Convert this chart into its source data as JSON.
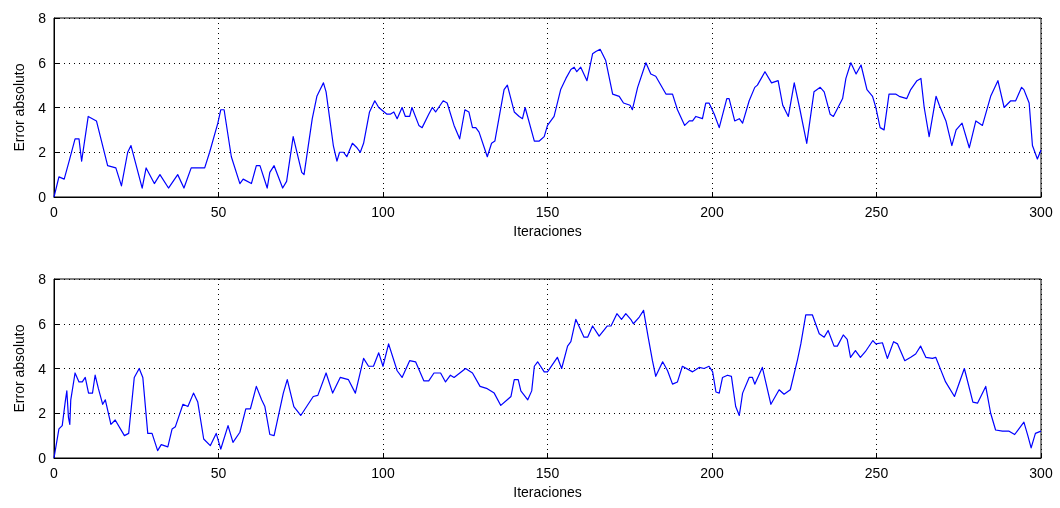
{
  "chart_data": [
    {
      "type": "line",
      "xlabel": "Iteraciones",
      "ylabel": "Error absoluto",
      "xlim": [
        0,
        300
      ],
      "xticks": [
        0,
        50,
        100,
        150,
        200,
        250,
        300
      ],
      "ylim": [
        0,
        8
      ],
      "yticks": [
        0,
        2,
        4,
        6,
        8
      ],
      "grid": true,
      "series": [
        {
          "color": "#0000ff",
          "x": [
            0,
            1.5,
            3.1,
            4.6,
            6.4,
            7.6,
            8.4,
            10.4,
            12.9,
            16.3,
            18.8,
            20.5,
            22.4,
            23.4,
            26.8,
            28.0,
            30.5,
            32.2,
            34.8,
            37.6,
            39.5,
            41.7,
            45.8,
            47.3,
            49.8,
            50.7,
            51.7,
            53.9,
            56.5,
            57.5,
            60.0,
            61.5,
            62.6,
            64.8,
            65.6,
            66.9,
            69.5,
            70.7,
            72.7,
            75.3,
            76.0,
            78.5,
            79.9,
            80.9,
            81.9,
            82.7,
            84.9,
            86.0,
            86.8,
            88.0,
            89.0,
            90.7,
            92.1,
            93.1,
            94.1,
            95.9,
            97.5,
            98.7,
            101.2,
            102.2,
            103.3,
            104.3,
            105.8,
            106.8,
            108.1,
            108.8,
            110.9,
            111.9,
            113.9,
            115.0,
            116.0,
            118.3,
            119.5,
            121.6,
            123.3,
            124.9,
            126.1,
            127.2,
            128.2,
            129.2,
            131.7,
            133.0,
            134.0,
            136.8,
            137.8,
            139.9,
            141.4,
            142.4,
            143.2,
            146.0,
            147.5,
            149.0,
            150,
            152,
            154,
            155.6,
            157.1,
            158.1,
            158.9,
            160.1,
            162,
            163.7,
            164.7,
            166,
            167.7,
            169.8,
            171.8,
            173.1,
            175.1,
            175.8,
            177.4,
            179.9,
            181.4,
            182.9,
            186,
            188,
            189.5,
            191.7,
            193.1,
            194.1,
            195.1,
            197.1,
            198.1,
            199.1,
            200.7,
            202.2,
            204.5,
            205.2,
            206.9,
            208.3,
            209.3,
            211.3,
            213,
            213.8,
            216.1,
            218.1,
            220.1,
            221.5,
            223.2,
            225,
            226.6,
            228.8,
            231,
            232.9,
            234.1,
            235.9,
            236.9,
            239.7,
            240.7,
            242.2,
            243.8,
            245.3,
            247.1,
            248.8,
            249.8,
            251.1,
            252.3,
            253.8,
            255.8,
            256.9,
            259.2,
            260.4,
            262.3,
            263.5,
            264.5,
            266,
            268.1,
            269.1,
            271.1,
            272.9,
            274.2,
            276,
            278.2,
            280.2,
            282.2,
            284.7,
            286.9,
            288.8,
            290.8,
            292.3,
            294.1,
            294.8,
            296.4,
            297.4,
            298.9,
            300
          ],
          "values": [
            0,
            0.9,
            0.8,
            1.6,
            2.6,
            2.6,
            1.6,
            3.6,
            3.4,
            1.4,
            1.3,
            0.5,
            2.0,
            2.3,
            0.4,
            1.3,
            0.6,
            1.0,
            0.4,
            1.0,
            0.4,
            1.3,
            1.3,
            2.0,
            3.3,
            3.9,
            3.9,
            1.8,
            0.6,
            0.8,
            0.6,
            1.4,
            1.4,
            0.4,
            1.1,
            1.4,
            0.4,
            0.7,
            2.7,
            1.1,
            1.0,
            3.5,
            4.5,
            4.8,
            5.1,
            4.7,
            2.3,
            1.6,
            2.0,
            2.0,
            1.8,
            2.4,
            2.2,
            2.0,
            2.4,
            3.8,
            4.3,
            4.0,
            3.7,
            3.7,
            3.8,
            3.5,
            4.0,
            3.6,
            3.6,
            4.0,
            3.2,
            3.1,
            3.7,
            4.0,
            3.8,
            4.3,
            4.2,
            3.2,
            2.6,
            3.9,
            3.8,
            3.1,
            3.1,
            2.9,
            1.8,
            2.4,
            2.5,
            4.8,
            5.0,
            3.8,
            3.6,
            3.5,
            4.0,
            2.5,
            2.5,
            2.7,
            3.2,
            3.6,
            4.8,
            5.3,
            5.7,
            5.8,
            5.6,
            5.8,
            5.2,
            6.4,
            6.5,
            6.6,
            6.1,
            4.6,
            4.5,
            4.2,
            4.1,
            3.9,
            4.9,
            6.0,
            5.5,
            5.4,
            4.6,
            4.6,
            3.9,
            3.2,
            3.4,
            3.4,
            3.6,
            3.5,
            4.2,
            4.2,
            3.7,
            3.1,
            4.4,
            4.4,
            3.4,
            3.5,
            3.3,
            4.3,
            4.9,
            5.0,
            5.6,
            5.1,
            5.2,
            4.1,
            3.6,
            5.1,
            4.0,
            2.4,
            4.7,
            4.9,
            4.7,
            3.7,
            3.6,
            4.4,
            5.3,
            6.0,
            5.5,
            5.9,
            4.8,
            4.5,
            4.0,
            3.1,
            3.0,
            4.6,
            4.6,
            4.5,
            4.4,
            4.8,
            5.2,
            5.3,
            4.0,
            2.7,
            4.5,
            4.1,
            3.4,
            2.3,
            3.0,
            3.3,
            2.2,
            3.4,
            3.2,
            4.5,
            5.2,
            4.0,
            4.3,
            4.3,
            4.9,
            4.8,
            4.2,
            2.3,
            1.7,
            2.1
          ]
        }
      ]
    },
    {
      "type": "line",
      "xlabel": "Iteraciones",
      "ylabel": "Error absoluto",
      "xlim": [
        0,
        300
      ],
      "xticks": [
        0,
        50,
        100,
        150,
        200,
        250,
        300
      ],
      "ylim": [
        0,
        8
      ],
      "yticks": [
        0,
        2,
        4,
        6,
        8
      ],
      "grid": true,
      "series": [
        {
          "color": "#0000ff",
          "x": [
            0,
            1.5,
            2.5,
            3.4,
            3.9,
            4.4,
            4.8,
            5.1,
            6.4,
            7.6,
            8.6,
            9.5,
            10.5,
            11.7,
            12.5,
            13.5,
            14.8,
            15.6,
            17.3,
            18.6,
            21.4,
            22.7,
            24.4,
            25.9,
            27,
            28.5,
            29.8,
            31.5,
            32.6,
            34.6,
            35.9,
            36.9,
            39.2,
            40.7,
            42.4,
            43.7,
            45.5,
            47.5,
            49.3,
            50.7,
            52.9,
            54.4,
            56.5,
            58.3,
            59.7,
            61.5,
            63.1,
            64.1,
            65.6,
            66.9,
            69.7,
            70.9,
            72.9,
            75,
            76.8,
            78.8,
            80.2,
            82.7,
            84.7,
            87,
            89.5,
            91.6,
            94.1,
            95.6,
            97.1,
            98.7,
            100,
            101.7,
            104.3,
            105.8,
            108.1,
            109.9,
            112.4,
            113.9,
            115.5,
            117.5,
            119,
            120.5,
            121.6,
            125.1,
            127.2,
            129.5,
            131.7,
            133.8,
            135.8,
            138.9,
            139.9,
            141.1,
            141.9,
            144,
            145.2,
            146,
            147,
            149,
            150,
            153,
            154.3,
            156.1,
            157.1,
            158.6,
            161.1,
            162.2,
            163.7,
            165.7,
            168.2,
            169.3,
            171.1,
            172.5,
            173.8,
            175.3,
            176.1,
            177.9,
            179.2,
            180.6,
            181.9,
            182.9,
            185,
            186.5,
            188,
            189.5,
            191,
            194.1,
            196.1,
            197.6,
            199.1,
            200.2,
            201.2,
            202.2,
            203.2,
            204.7,
            205.9,
            207.2,
            208.3,
            209.3,
            211.3,
            212.3,
            213,
            215.3,
            217.9,
            220.4,
            221.9,
            223.8,
            226,
            227,
            228.5,
            230.5,
            232.6,
            234.1,
            235.3,
            237.1,
            238.1,
            239.9,
            241.1,
            242.1,
            243.6,
            245.1,
            246.6,
            248.9,
            249.8,
            251.8,
            253.3,
            255.2,
            256.4,
            258.6,
            260.4,
            261.9,
            263.4,
            265,
            267,
            268,
            269.5,
            271,
            273.7,
            276.7,
            279.3,
            280.7,
            283.2,
            284.7,
            286.2,
            288.3,
            290.3,
            292,
            294.8,
            296,
            297,
            298.3,
            300
          ],
          "values": [
            0,
            1.3,
            1.45,
            2.5,
            3.0,
            1.8,
            1.5,
            2.6,
            3.8,
            3.4,
            3.4,
            3.6,
            2.9,
            2.9,
            3.7,
            3.1,
            2.4,
            2.6,
            1.5,
            1.7,
            1.0,
            1.1,
            3.6,
            4.0,
            3.6,
            1.1,
            1.1,
            0.33,
            0.6,
            0.5,
            1.3,
            1.4,
            2.4,
            2.3,
            2.9,
            2.5,
            0.85,
            0.55,
            1.1,
            0.4,
            1.45,
            0.7,
            1.15,
            2.2,
            2.2,
            3.2,
            2.6,
            2.3,
            1.05,
            1.0,
            2.9,
            3.5,
            2.3,
            1.9,
            2.3,
            2.75,
            2.8,
            3.8,
            2.9,
            3.6,
            3.5,
            2.9,
            4.45,
            4.1,
            4.1,
            4.7,
            4.1,
            5.1,
            3.9,
            3.6,
            4.35,
            4.3,
            3.45,
            3.45,
            3.8,
            3.8,
            3.4,
            3.7,
            3.6,
            4.0,
            3.8,
            3.2,
            3.1,
            2.9,
            2.35,
            2.75,
            3.5,
            3.5,
            3.0,
            2.6,
            3.0,
            4.1,
            4.3,
            3.85,
            3.85,
            4.5,
            4.0,
            5.0,
            5.2,
            6.2,
            5.4,
            5.4,
            5.9,
            5.45,
            5.9,
            5.9,
            6.45,
            6.2,
            6.45,
            6.2,
            6.0,
            6.3,
            6.6,
            5.4,
            4.35,
            3.65,
            4.3,
            3.9,
            3.3,
            3.4,
            4.1,
            3.85,
            4.05,
            4.0,
            4.1,
            3.85,
            2.95,
            2.9,
            3.6,
            3.7,
            3.65,
            2.3,
            1.9,
            2.9,
            3.6,
            3.6,
            3.3,
            4.05,
            2.4,
            3.05,
            2.85,
            3.05,
            4.4,
            5.1,
            6.4,
            6.4,
            5.55,
            5.4,
            5.7,
            5.0,
            5.0,
            5.5,
            5.3,
            4.5,
            4.8,
            4.5,
            4.75,
            5.25,
            5.1,
            5.15,
            4.45,
            5.2,
            5.1,
            4.35,
            4.5,
            4.65,
            5.0,
            4.5,
            4.45,
            4.5,
            3.95,
            3.4,
            2.75,
            4.0,
            2.5,
            2.45,
            3.2,
            2.0,
            1.25,
            1.2,
            1.2,
            1.05,
            1.6,
            1.0,
            0.45,
            1.1,
            1.2
          ]
        }
      ]
    }
  ]
}
